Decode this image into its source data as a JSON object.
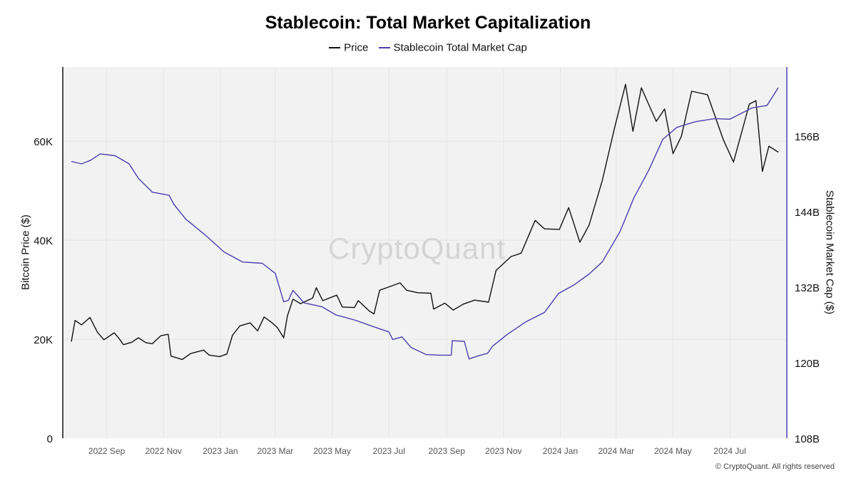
{
  "chart_data": {
    "type": "line",
    "title": "Stablecoin: Total Market Capitalization",
    "x_ticks": [
      "2022 Sep",
      "2022 Nov",
      "2023 Jan",
      "2023 Mar",
      "2023 May",
      "2023 Jul",
      "2023 Sep",
      "2023 Nov",
      "2024 Jan",
      "2024 Mar",
      "2024 May",
      "2024 Jul"
    ],
    "x_range": [
      "2022-07-25",
      "2024-08-22"
    ],
    "y_left": {
      "label": "Bitcoin Price ($)",
      "ticks": [
        0,
        20000,
        40000,
        60000
      ],
      "tick_labels": [
        "0",
        "20K",
        "40K",
        "60K"
      ],
      "range": [
        0,
        75000
      ]
    },
    "y_right": {
      "label": "Stablecoin Market Cap ($)",
      "ticks": [
        108,
        120,
        132,
        144,
        156
      ],
      "tick_labels": [
        "108B",
        "120B",
        "132B",
        "144B",
        "156B"
      ],
      "range": [
        108,
        167
      ]
    },
    "series": [
      {
        "name": "Price",
        "axis": "left",
        "color": "#111111",
        "points": [
          [
            "2022-07-25",
            19500
          ],
          [
            "2022-07-29",
            23800
          ],
          [
            "2022-08-05",
            22900
          ],
          [
            "2022-08-14",
            24400
          ],
          [
            "2022-08-22",
            21400
          ],
          [
            "2022-08-29",
            19900
          ],
          [
            "2022-09-09",
            21300
          ],
          [
            "2022-09-14",
            20200
          ],
          [
            "2022-09-19",
            18900
          ],
          [
            "2022-09-28",
            19400
          ],
          [
            "2022-10-05",
            20300
          ],
          [
            "2022-10-13",
            19300
          ],
          [
            "2022-10-20",
            19100
          ],
          [
            "2022-10-29",
            20700
          ],
          [
            "2022-11-06",
            21000
          ],
          [
            "2022-11-09",
            16600
          ],
          [
            "2022-11-21",
            15900
          ],
          [
            "2022-11-30",
            17100
          ],
          [
            "2022-12-14",
            17800
          ],
          [
            "2022-12-20",
            16800
          ],
          [
            "2022-12-31",
            16500
          ],
          [
            "2023-01-08",
            17000
          ],
          [
            "2023-01-14",
            20800
          ],
          [
            "2023-01-22",
            22700
          ],
          [
            "2023-02-02",
            23300
          ],
          [
            "2023-02-10",
            21700
          ],
          [
            "2023-02-17",
            24500
          ],
          [
            "2023-02-25",
            23400
          ],
          [
            "2023-03-03",
            22400
          ],
          [
            "2023-03-10",
            20300
          ],
          [
            "2023-03-14",
            24700
          ],
          [
            "2023-03-20",
            28100
          ],
          [
            "2023-03-28",
            27200
          ],
          [
            "2023-04-10",
            28300
          ],
          [
            "2023-04-14",
            30400
          ],
          [
            "2023-04-21",
            27800
          ],
          [
            "2023-05-06",
            28900
          ],
          [
            "2023-05-12",
            26500
          ],
          [
            "2023-05-25",
            26400
          ],
          [
            "2023-05-29",
            27800
          ],
          [
            "2023-06-10",
            25700
          ],
          [
            "2023-06-15",
            25100
          ],
          [
            "2023-06-21",
            29900
          ],
          [
            "2023-06-30",
            30500
          ],
          [
            "2023-07-13",
            31400
          ],
          [
            "2023-07-20",
            29900
          ],
          [
            "2023-08-01",
            29400
          ],
          [
            "2023-08-15",
            29300
          ],
          [
            "2023-08-18",
            26100
          ],
          [
            "2023-08-30",
            27300
          ],
          [
            "2023-09-08",
            25900
          ],
          [
            "2023-09-19",
            27100
          ],
          [
            "2023-10-01",
            27900
          ],
          [
            "2023-10-16",
            27500
          ],
          [
            "2023-10-24",
            33900
          ],
          [
            "2023-11-09",
            36700
          ],
          [
            "2023-11-20",
            37400
          ],
          [
            "2023-12-05",
            44000
          ],
          [
            "2023-12-15",
            42300
          ],
          [
            "2023-12-31",
            42200
          ],
          [
            "2024-01-10",
            46600
          ],
          [
            "2024-01-22",
            39600
          ],
          [
            "2024-02-01",
            43100
          ],
          [
            "2024-02-15",
            52000
          ],
          [
            "2024-02-28",
            62500
          ],
          [
            "2024-03-11",
            71500
          ],
          [
            "2024-03-19",
            62000
          ],
          [
            "2024-03-28",
            70800
          ],
          [
            "2024-04-13",
            64000
          ],
          [
            "2024-04-22",
            66500
          ],
          [
            "2024-05-01",
            57500
          ],
          [
            "2024-05-10",
            61000
          ],
          [
            "2024-05-21",
            70100
          ],
          [
            "2024-06-07",
            69400
          ],
          [
            "2024-06-24",
            60300
          ],
          [
            "2024-07-05",
            55800
          ],
          [
            "2024-07-22",
            67500
          ],
          [
            "2024-07-29",
            68200
          ],
          [
            "2024-08-05",
            53900
          ],
          [
            "2024-08-12",
            59000
          ],
          [
            "2024-08-22",
            57800
          ]
        ]
      },
      {
        "name": "Stablecoin Total Market Cap",
        "axis": "right",
        "color": "#4a3fb0",
        "points": [
          [
            "2022-07-25",
            152.0
          ],
          [
            "2022-08-05",
            151.6
          ],
          [
            "2022-08-15",
            152.2
          ],
          [
            "2022-08-25",
            153.2
          ],
          [
            "2022-09-10",
            152.9
          ],
          [
            "2022-09-25",
            151.6
          ],
          [
            "2022-10-05",
            149.3
          ],
          [
            "2022-10-20",
            147.1
          ],
          [
            "2022-11-07",
            146.6
          ],
          [
            "2022-11-12",
            145.2
          ],
          [
            "2022-11-25",
            142.8
          ],
          [
            "2022-12-15",
            140.4
          ],
          [
            "2023-01-05",
            137.6
          ],
          [
            "2023-01-25",
            136.0
          ],
          [
            "2023-02-15",
            135.8
          ],
          [
            "2023-03-01",
            134.2
          ],
          [
            "2023-03-10",
            129.7
          ],
          [
            "2023-03-15",
            129.9
          ],
          [
            "2023-03-20",
            131.5
          ],
          [
            "2023-04-01",
            129.5
          ],
          [
            "2023-04-20",
            128.9
          ],
          [
            "2023-05-05",
            127.6
          ],
          [
            "2023-05-25",
            126.8
          ],
          [
            "2023-06-15",
            125.7
          ],
          [
            "2023-07-01",
            124.9
          ],
          [
            "2023-07-05",
            123.7
          ],
          [
            "2023-07-15",
            124.1
          ],
          [
            "2023-07-25",
            122.4
          ],
          [
            "2023-08-10",
            121.3
          ],
          [
            "2023-08-25",
            121.2
          ],
          [
            "2023-09-06",
            121.2
          ],
          [
            "2023-09-07",
            123.5
          ],
          [
            "2023-09-20",
            123.4
          ],
          [
            "2023-09-25",
            120.6
          ],
          [
            "2023-10-05",
            121.1
          ],
          [
            "2023-10-15",
            121.5
          ],
          [
            "2023-10-20",
            122.6
          ],
          [
            "2023-11-05",
            124.5
          ],
          [
            "2023-11-25",
            126.5
          ],
          [
            "2023-12-15",
            128.0
          ],
          [
            "2023-12-30",
            131.0
          ],
          [
            "2024-01-15",
            132.3
          ],
          [
            "2024-02-01",
            134.1
          ],
          [
            "2024-02-15",
            136.0
          ],
          [
            "2024-03-05",
            140.8
          ],
          [
            "2024-03-20",
            146.2
          ],
          [
            "2024-04-05",
            150.6
          ],
          [
            "2024-04-20",
            155.5
          ],
          [
            "2024-05-05",
            157.4
          ],
          [
            "2024-05-25",
            158.3
          ],
          [
            "2024-06-15",
            158.8
          ],
          [
            "2024-07-01",
            158.7
          ],
          [
            "2024-07-25",
            160.5
          ],
          [
            "2024-08-10",
            160.9
          ],
          [
            "2024-08-22",
            163.7
          ]
        ]
      }
    ],
    "grid": true,
    "legend": "top-center"
  },
  "watermark": "CryptoQuant",
  "copyright": "© CryptoQuant. All rights reserved"
}
